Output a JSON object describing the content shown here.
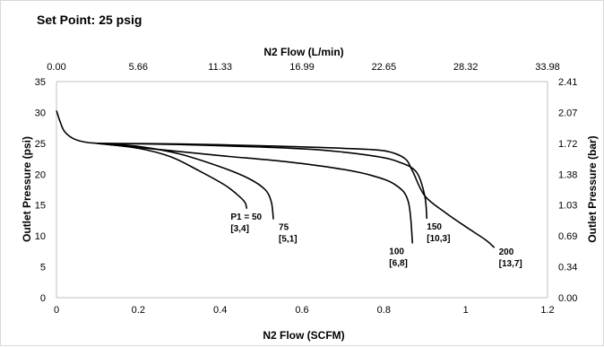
{
  "chart_data": {
    "type": "line",
    "title": "Set Point: 25 psig",
    "xlabel": "N2 Flow (SCFM)",
    "x2label": "N2 Flow (L/min)",
    "ylabel": "Outlet Pressure (psi)",
    "y2label": "Outlet Pressure (bar)",
    "xlim": [
      0,
      1.2
    ],
    "ylim": [
      0,
      35
    ],
    "grid": false,
    "x_ticks": [
      "0",
      "0.2",
      "0.4",
      "0.6",
      "0.8",
      "1",
      "1.2"
    ],
    "x2_ticks": [
      "0.00",
      "5.66",
      "11.33",
      "16.99",
      "22.65",
      "28.32",
      "33.98"
    ],
    "y_ticks": [
      "0",
      "5",
      "10",
      "15",
      "20",
      "25",
      "30",
      "35"
    ],
    "y2_ticks": [
      "0.00",
      "0.34",
      "0.69",
      "1.03",
      "1.38",
      "1.72",
      "2.07",
      "2.41"
    ],
    "series": [
      {
        "name": "P1 = 50 [3,4]",
        "label_lines": [
          "P1 = 50",
          "[3,4]"
        ],
        "x": [
          0.1,
          0.2,
          0.28,
          0.35,
          0.41,
          0.44,
          0.46,
          0.465
        ],
        "y": [
          25,
          24.2,
          22.8,
          20.5,
          18.3,
          16.8,
          15.5,
          14.4
        ]
      },
      {
        "name": "75 [5,1]",
        "label_lines": [
          "75",
          "[5,1]"
        ],
        "x": [
          0.1,
          0.2,
          0.3,
          0.4,
          0.47,
          0.51,
          0.525,
          0.53
        ],
        "y": [
          25,
          24.5,
          23.3,
          21.2,
          19.3,
          17.5,
          15.5,
          12.7
        ]
      },
      {
        "name": "100 [6,8]",
        "label_lines": [
          "100",
          "[6,8]"
        ],
        "x": [
          0.1,
          0.25,
          0.4,
          0.55,
          0.68,
          0.77,
          0.83,
          0.86,
          0.87
        ],
        "y": [
          25,
          24,
          23,
          22.1,
          21,
          19.8,
          18.2,
          15.5,
          8.8
        ]
      },
      {
        "name": "150 [10,3]",
        "label_lines": [
          "150",
          "[10,3]"
        ],
        "x": [
          0.1,
          0.3,
          0.5,
          0.65,
          0.78,
          0.84,
          0.88,
          0.9,
          0.905
        ],
        "y": [
          25,
          24.8,
          24.4,
          23.9,
          22.9,
          21.9,
          20.3,
          16.5,
          12.8
        ]
      },
      {
        "name": "200 [13,7]",
        "label_lines": [
          "200",
          "[13,7]"
        ],
        "x": [
          0.1,
          0.3,
          0.5,
          0.7,
          0.8,
          0.85,
          0.87,
          0.9,
          0.95,
          1.0,
          1.05,
          1.07
        ],
        "y": [
          25,
          24.9,
          24.6,
          24.2,
          23.8,
          22.6,
          20.5,
          16.5,
          13.8,
          11.5,
          9.3,
          8.1
        ]
      }
    ],
    "initial_curve": {
      "x": [
        0,
        0.01,
        0.02,
        0.04,
        0.07,
        0.1
      ],
      "y": [
        30.3,
        28.3,
        26.9,
        25.8,
        25.2,
        25.0
      ]
    }
  }
}
